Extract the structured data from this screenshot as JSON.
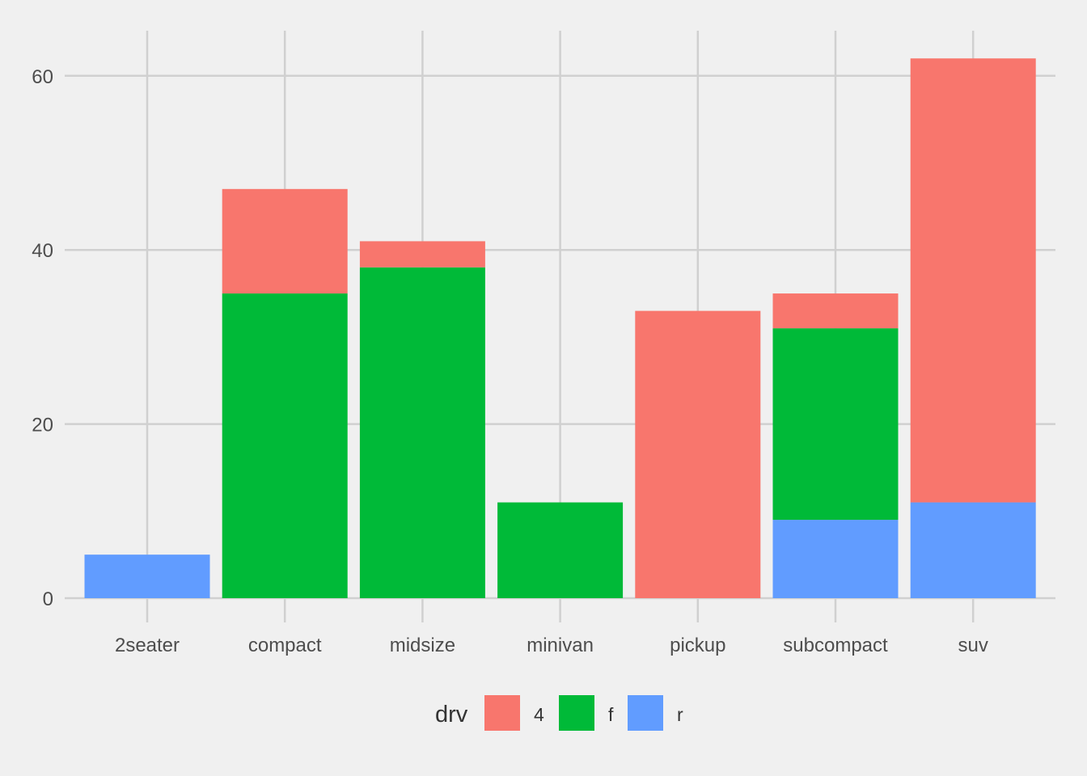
{
  "chart_data": {
    "type": "bar",
    "stacked": true,
    "title": "",
    "xlabel": "",
    "ylabel": "",
    "categories": [
      "2seater",
      "compact",
      "midsize",
      "minivan",
      "pickup",
      "subcompact",
      "suv"
    ],
    "ylim": [
      0,
      65
    ],
    "yticks": [
      0,
      20,
      40,
      60
    ],
    "grid": true,
    "legend": {
      "title": "drv",
      "position": "bottom"
    },
    "series": [
      {
        "name": "4",
        "color": "#f8766d",
        "values": [
          0,
          12,
          3,
          0,
          33,
          4,
          51
        ]
      },
      {
        "name": "f",
        "color": "#00ba38",
        "values": [
          0,
          35,
          38,
          11,
          0,
          22,
          0
        ]
      },
      {
        "name": "r",
        "color": "#619cff",
        "values": [
          5,
          0,
          0,
          0,
          0,
          9,
          11
        ]
      }
    ]
  }
}
